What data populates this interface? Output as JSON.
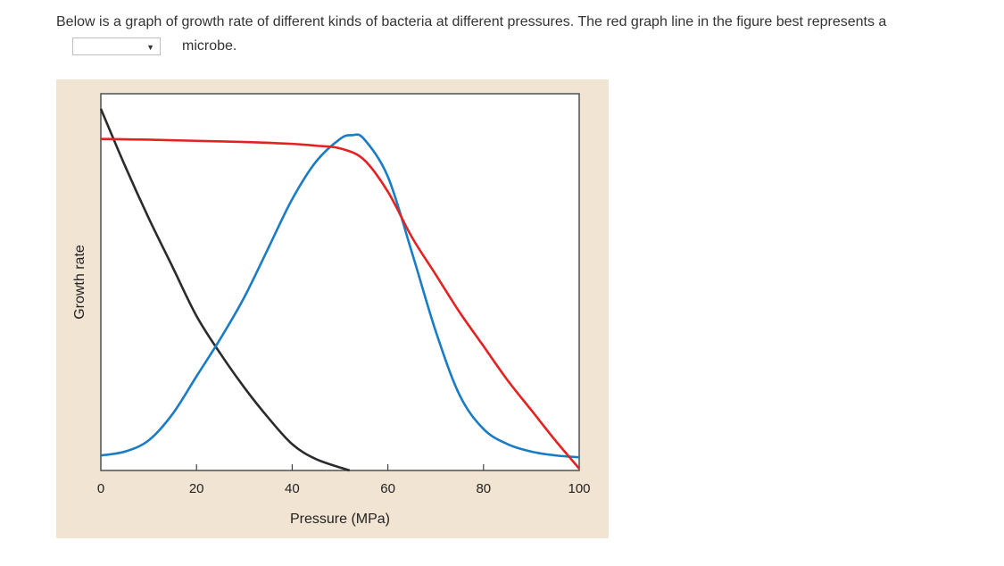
{
  "question": {
    "text": "Below is a graph of growth rate of different kinds of bacteria at different pressures. The red graph line in the figure best represents a",
    "dropdown_selected": "",
    "suffix": "microbe."
  },
  "chart_data": {
    "type": "line",
    "title": "",
    "xlabel": "Pressure (MPa)",
    "ylabel": "Growth rate",
    "xlim": [
      0,
      100
    ],
    "ylim": [
      0,
      100
    ],
    "xticks": [
      0,
      20,
      40,
      60,
      80,
      100
    ],
    "xtick_labels": [
      "0",
      "20",
      "40",
      "60",
      "80",
      "100"
    ],
    "grid": false,
    "colors": {
      "red": "#e32222",
      "blue": "#1a7cc4",
      "black": "#2b2b2b",
      "background": "#f2e4d2"
    },
    "series": [
      {
        "name": "red",
        "color": "#e32222",
        "x": [
          0,
          10,
          20,
          30,
          40,
          45,
          50,
          55,
          60,
          65,
          70,
          75,
          80,
          85,
          90,
          95,
          100
        ],
        "y": [
          88,
          87.8,
          87.5,
          87.2,
          86.7,
          86.2,
          85.5,
          82.5,
          74,
          62,
          52,
          42,
          33,
          24,
          16,
          8,
          0.5
        ]
      },
      {
        "name": "blue",
        "color": "#1a7cc4",
        "x": [
          0,
          5,
          10,
          15,
          20,
          25,
          30,
          35,
          40,
          45,
          50,
          52.5,
          55,
          60,
          65,
          70,
          75,
          80,
          85,
          90,
          95,
          100
        ],
        "y": [
          4,
          5,
          8,
          15,
          25,
          35,
          46,
          59,
          72,
          82,
          88,
          89,
          88,
          78,
          58,
          37,
          20,
          11,
          7,
          5,
          4,
          3.5
        ]
      },
      {
        "name": "black",
        "color": "#2b2b2b",
        "x": [
          0,
          5,
          10,
          15,
          20,
          25,
          30,
          35,
          40,
          45,
          52
        ],
        "y": [
          96,
          81,
          67,
          54,
          41,
          31,
          22,
          14,
          7,
          3,
          0
        ]
      }
    ]
  }
}
